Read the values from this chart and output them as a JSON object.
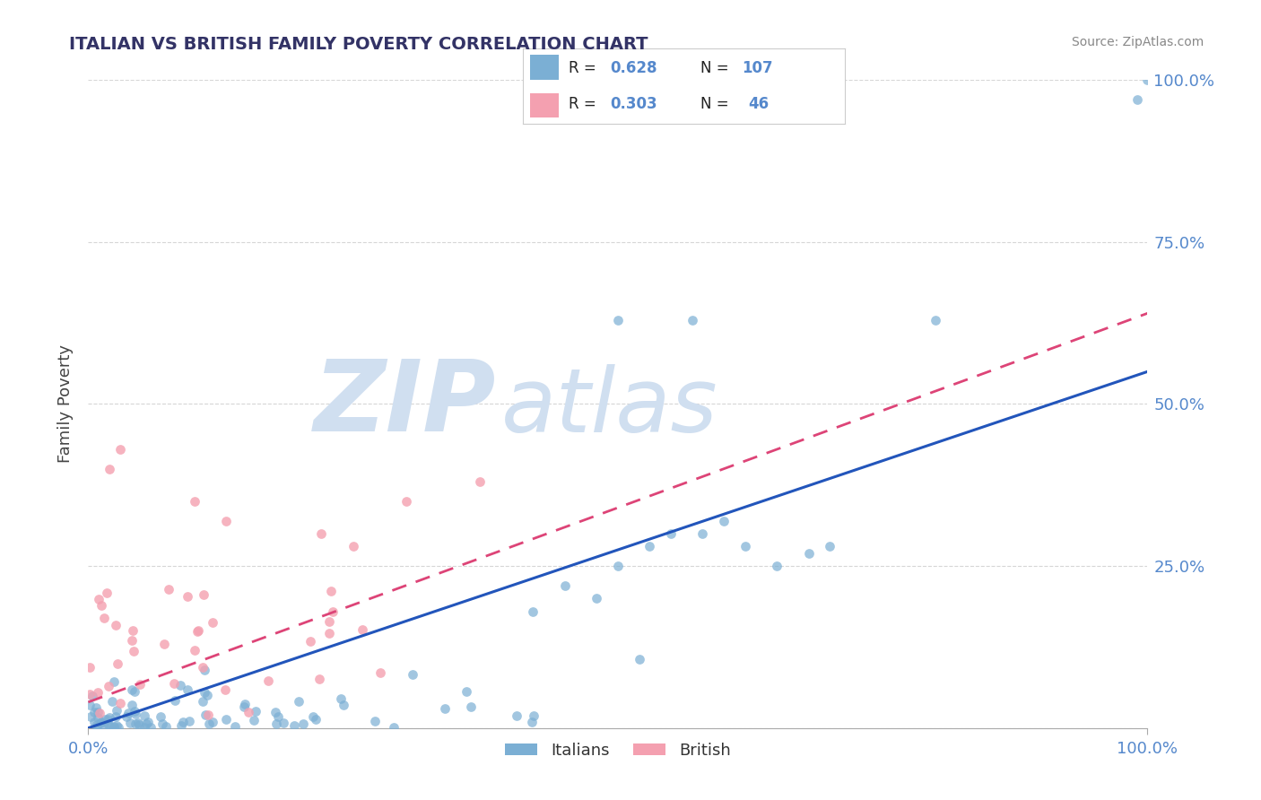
{
  "title": "ITALIAN VS BRITISH FAMILY POVERTY CORRELATION CHART",
  "source": "Source: ZipAtlas.com",
  "ylabel": "Family Poverty",
  "italian_R": 0.628,
  "italian_N": 107,
  "british_R": 0.303,
  "british_N": 46,
  "italian_color": "#7bafd4",
  "british_color": "#f4a0b0",
  "italian_line_color": "#2255bb",
  "british_line_color": "#dd4477",
  "background_color": "#ffffff",
  "grid_color": "#cccccc",
  "axis_label_color": "#5588cc",
  "watermark_zip": "ZIP",
  "watermark_atlas": "atlas",
  "watermark_color": "#d0dff0",
  "title_color": "#333366",
  "source_color": "#888888",
  "legend_border_color": "#cccccc"
}
